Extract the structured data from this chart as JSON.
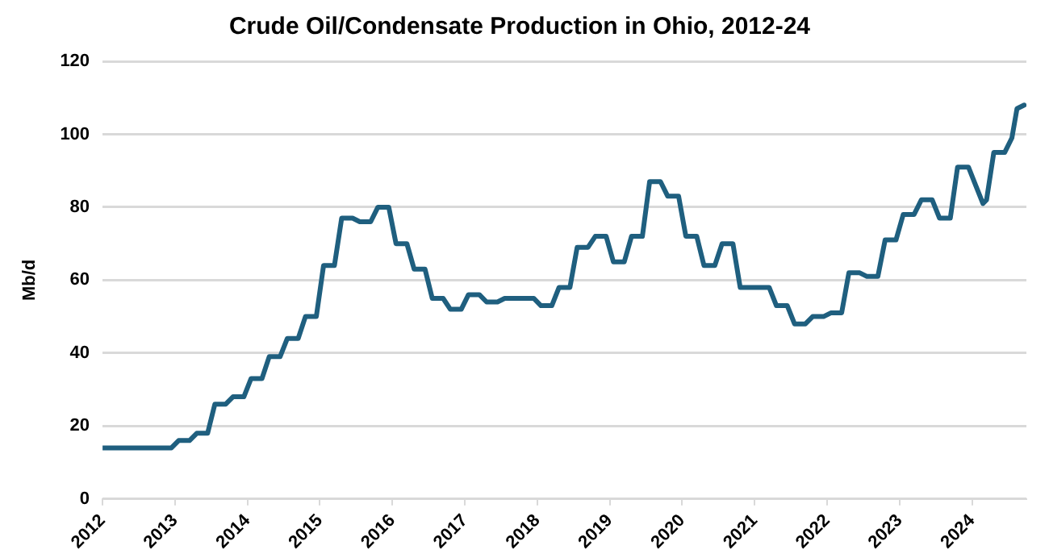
{
  "chart_data": {
    "type": "line",
    "title": "Crude Oil/Condensate Production in Ohio, 2012-24",
    "ylabel": "Mb/d",
    "x": [
      2012.0,
      2012.95,
      2013.05,
      2013.2,
      2013.3,
      2013.45,
      2013.55,
      2013.7,
      2013.8,
      2013.95,
      2014.05,
      2014.2,
      2014.3,
      2014.45,
      2014.55,
      2014.7,
      2014.8,
      2014.95,
      2015.05,
      2015.2,
      2015.3,
      2015.45,
      2015.55,
      2015.7,
      2015.8,
      2015.95,
      2016.05,
      2016.2,
      2016.3,
      2016.45,
      2016.55,
      2016.7,
      2016.8,
      2016.95,
      2017.05,
      2017.2,
      2017.3,
      2017.45,
      2017.55,
      2017.95,
      2018.05,
      2018.2,
      2018.3,
      2018.45,
      2018.55,
      2018.7,
      2018.8,
      2018.95,
      2019.05,
      2019.2,
      2019.3,
      2019.45,
      2019.55,
      2019.7,
      2019.8,
      2019.95,
      2020.05,
      2020.2,
      2020.3,
      2020.45,
      2020.55,
      2020.7,
      2020.8,
      2021.2,
      2021.3,
      2021.45,
      2021.55,
      2021.7,
      2021.8,
      2021.95,
      2022.05,
      2022.2,
      2022.3,
      2022.45,
      2022.55,
      2022.7,
      2022.8,
      2022.95,
      2023.05,
      2023.2,
      2023.3,
      2023.45,
      2023.55,
      2023.7,
      2023.8,
      2023.95,
      2024.05,
      2024.15,
      2024.2,
      2024.3,
      2024.45,
      2024.55,
      2024.62,
      2024.72
    ],
    "series": [
      {
        "color": "#1f5f7f",
        "values": [
          14,
          14,
          16,
          16,
          18,
          18,
          26,
          26,
          28,
          28,
          33,
          33,
          39,
          39,
          44,
          44,
          50,
          50,
          64,
          64,
          77,
          77,
          76,
          76,
          80,
          80,
          70,
          70,
          63,
          63,
          55,
          55,
          52,
          52,
          56,
          56,
          54,
          54,
          55,
          55,
          53,
          53,
          58,
          58,
          69,
          69,
          72,
          72,
          65,
          65,
          72,
          72,
          87,
          87,
          83,
          83,
          72,
          72,
          64,
          64,
          70,
          70,
          58,
          58,
          53,
          53,
          48,
          48,
          50,
          50,
          51,
          51,
          62,
          62,
          61,
          61,
          71,
          71,
          78,
          78,
          82,
          82,
          77,
          77,
          91,
          91,
          86,
          81,
          82,
          95,
          95,
          99,
          107,
          108
        ]
      }
    ],
    "xlim": [
      2012,
      2024.75
    ],
    "xticks": [
      2012,
      2013,
      2014,
      2015,
      2016,
      2017,
      2018,
      2019,
      2020,
      2021,
      2022,
      2023,
      2024
    ],
    "ylim": [
      0,
      120
    ],
    "yticks": [
      0,
      20,
      40,
      60,
      80,
      100,
      120
    ],
    "grid": "y",
    "legend": false,
    "marker": "none",
    "line_style": "solid"
  }
}
